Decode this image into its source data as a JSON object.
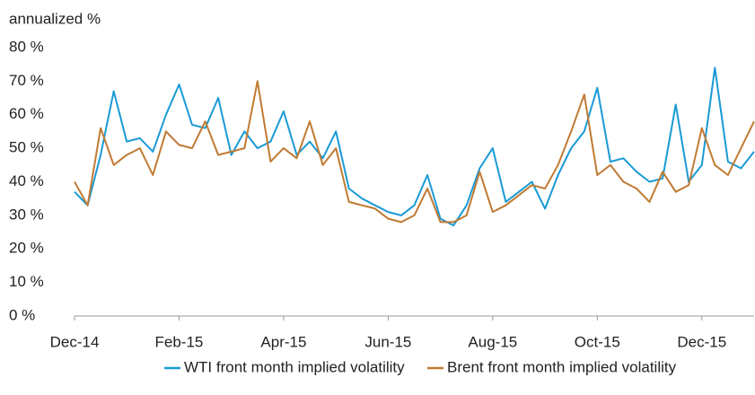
{
  "chart_data": {
    "type": "line",
    "y_label": "annualized %",
    "categories": [
      "Dec-14",
      null,
      null,
      null,
      null,
      null,
      null,
      null,
      "Feb-15",
      null,
      null,
      null,
      null,
      null,
      null,
      null,
      "Apr-15",
      null,
      null,
      null,
      null,
      null,
      null,
      null,
      "Jun-15",
      null,
      null,
      null,
      null,
      null,
      null,
      null,
      "Aug-15",
      null,
      null,
      null,
      null,
      null,
      null,
      null,
      "Oct-15",
      null,
      null,
      null,
      null,
      null,
      null,
      null,
      "Dec-15",
      null,
      null,
      null,
      null
    ],
    "series": [
      {
        "name": "WTI front month implied volatility",
        "color": "#1a9ad6",
        "values": [
          37,
          33,
          48,
          67,
          52,
          53,
          49,
          60,
          69,
          57,
          56,
          65,
          48,
          55,
          50,
          52,
          61,
          48,
          52,
          47,
          55,
          38,
          35,
          33,
          31,
          30,
          33,
          42,
          29,
          27,
          33,
          44,
          50,
          34,
          37,
          40,
          32,
          42,
          50,
          55,
          68,
          46,
          47,
          43,
          40,
          41,
          63,
          40,
          45,
          74,
          46,
          44,
          49
        ]
      },
      {
        "name": "Brent front month implied volatility",
        "color": "#c07a33",
        "values": [
          40,
          33,
          56,
          45,
          48,
          50,
          42,
          55,
          51,
          50,
          58,
          48,
          49,
          50,
          70,
          46,
          50,
          47,
          58,
          45,
          50,
          34,
          33,
          32,
          29,
          28,
          30,
          38,
          28,
          28,
          30,
          43,
          31,
          33,
          36,
          39,
          38,
          45,
          55,
          66,
          42,
          45,
          40,
          38,
          34,
          43,
          37,
          39,
          56,
          45,
          42,
          50,
          58
        ]
      }
    ],
    "ylim": [
      0,
      80
    ],
    "yticks": [
      {
        "value": 0,
        "label": "0 %"
      },
      {
        "value": 10,
        "label": "10 %"
      },
      {
        "value": 20,
        "label": "20 %"
      },
      {
        "value": 30,
        "label": "30 %"
      },
      {
        "value": 40,
        "label": "40 %"
      },
      {
        "value": 50,
        "label": "50 %"
      },
      {
        "value": 60,
        "label": "60 %"
      },
      {
        "value": 70,
        "label": "70 %"
      },
      {
        "value": 80,
        "label": "80 %"
      }
    ],
    "grid": false
  }
}
